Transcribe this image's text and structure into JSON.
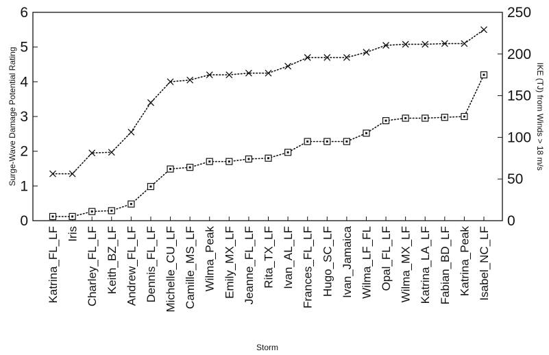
{
  "chart_data": {
    "type": "line",
    "xlabel": "Storm",
    "ylabel_left": "Surge-Wave Damage Potential Rating",
    "ylabel_right": "IKE (TJ) from Winds > 18 m/s",
    "ylim_left": [
      0,
      6
    ],
    "ylim_right": [
      0,
      250
    ],
    "yticks_left": [
      "0",
      "1",
      "2",
      "3",
      "4",
      "5",
      "6"
    ],
    "yticks_right": [
      "0",
      "50",
      "100",
      "150",
      "200",
      "250"
    ],
    "grid": false,
    "categories": [
      "Katrina_FL_LF",
      "Iris",
      "Charley_FL_LF",
      "Keith_BZ_LF",
      "Andrew_FL_LF",
      "Dennis_FL_LF",
      "Michelle_CU_LF",
      "Camille_MS_LF",
      "Wilma_Peak",
      "Emily_MX_LF",
      "Jeanne_FL_LF",
      "Rita_TX_LF",
      "Ivan_AL_LF",
      "Frances_FL_LF",
      "Hugo_SC_LF",
      "Ivan_Jamaica",
      "Wilma_LF_FL",
      "Opal_FL_LF",
      "Wilma_MX_LF",
      "Katrina_LA_LF",
      "Fabian_BD_LF",
      "Katrina_Peak",
      "Isabel_NC_LF"
    ],
    "series": [
      {
        "marker": "x",
        "axis": "left",
        "values": [
          1.35,
          1.35,
          1.95,
          1.97,
          2.55,
          3.4,
          4.0,
          4.05,
          4.2,
          4.2,
          4.25,
          4.25,
          4.45,
          4.7,
          4.7,
          4.7,
          4.85,
          5.05,
          5.08,
          5.08,
          5.1,
          5.1,
          5.5
        ]
      },
      {
        "marker": "square",
        "axis": "right",
        "values": [
          5,
          5,
          11,
          12,
          20,
          41,
          62,
          64,
          71,
          71,
          74,
          75,
          82,
          95,
          95,
          95,
          105,
          120,
          123,
          123,
          124,
          125,
          175
        ]
      }
    ]
  }
}
